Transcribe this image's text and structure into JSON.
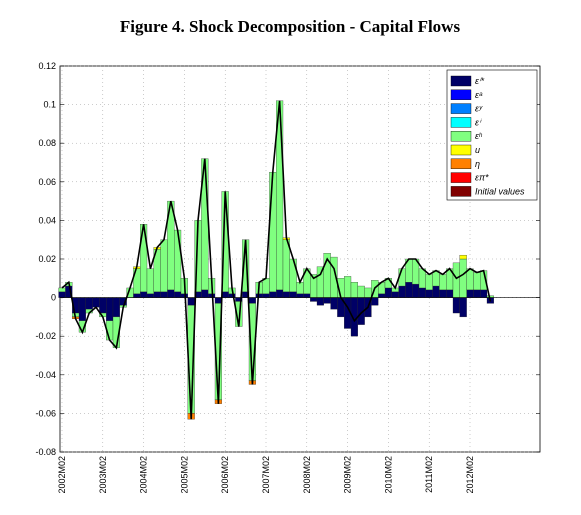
{
  "chart_data": {
    "type": "stacked-bar",
    "title": "Figure 4. Shock Decomposition - Capital Flows",
    "categories": [
      "2002M02",
      null,
      null,
      null,
      null,
      null,
      "2003M02",
      null,
      null,
      null,
      null,
      null,
      "2004M02",
      null,
      null,
      null,
      null,
      null,
      "2005M02",
      null,
      null,
      null,
      null,
      null,
      "2006M02",
      null,
      null,
      null,
      null,
      null,
      "2007M02",
      null,
      null,
      null,
      null,
      null,
      "2008M02",
      null,
      null,
      null,
      null,
      null,
      "2009M02",
      null,
      null,
      null,
      null,
      null,
      "2010M02",
      null,
      null,
      null,
      null,
      null,
      "2011M02",
      null,
      null,
      null,
      null,
      null,
      "2012M02",
      null,
      null,
      null
    ],
    "ylim": [
      -0.08,
      0.12
    ],
    "yticks": [
      -0.08,
      -0.06,
      -0.04,
      -0.02,
      0,
      0.02,
      0.04,
      0.06,
      0.08,
      0.1,
      0.12
    ],
    "grid": true,
    "series": [
      {
        "name": "εⁱ*",
        "color": "#000066",
        "values": [
          0.003,
          0.006,
          -0.008,
          -0.012,
          -0.006,
          -0.005,
          -0.008,
          -0.012,
          -0.01,
          -0.004,
          0,
          0.002,
          0.003,
          0.002,
          0.003,
          0.003,
          0.004,
          0.003,
          0.002,
          -0.004,
          0.003,
          0.004,
          0.002,
          -0.003,
          0.003,
          0.002,
          -0.002,
          0.003,
          -0.003,
          0.002,
          0.002,
          0.003,
          0.004,
          0.003,
          0.003,
          0.002,
          0.002,
          -0.002,
          -0.004,
          -0.003,
          -0.006,
          -0.01,
          -0.016,
          -0.02,
          -0.014,
          -0.01,
          -0.004,
          0.002,
          0.005,
          0.003,
          0.006,
          0.008,
          0.007,
          0.005,
          0.004,
          0.006,
          0.004,
          0.004,
          -0.008,
          -0.01,
          0.004,
          0.004,
          0.004,
          -0.003
        ]
      },
      {
        "name": "εᵃ",
        "color": "#0000ff",
        "values": [
          0,
          0,
          0,
          0,
          0,
          0,
          0,
          0,
          0,
          0,
          0,
          0,
          0,
          0,
          0,
          0,
          0,
          0,
          0,
          0,
          0,
          0,
          0,
          0,
          0,
          0,
          0,
          0,
          0,
          0,
          0,
          0,
          0,
          0,
          0,
          0,
          0,
          0,
          0,
          0,
          0,
          0,
          0,
          0,
          0,
          0,
          0,
          0,
          0,
          0,
          0,
          0,
          0,
          0,
          0,
          0,
          0,
          0,
          0,
          0,
          0,
          0,
          0,
          0
        ]
      },
      {
        "name": "εʸ",
        "color": "#0080ff",
        "values": [
          0,
          0,
          0,
          0,
          0,
          0,
          0,
          0,
          0,
          0,
          0,
          0,
          0,
          0,
          0,
          0,
          0,
          0,
          0,
          0,
          0,
          0,
          0,
          0,
          0,
          0,
          0,
          0,
          0,
          0,
          0,
          0,
          0,
          0,
          0,
          0,
          0,
          0,
          0,
          0,
          0,
          0,
          0,
          0,
          0,
          0,
          0,
          0,
          0,
          0,
          0,
          0,
          0,
          0,
          0,
          0,
          0,
          0,
          0,
          0,
          0,
          0,
          0,
          0
        ]
      },
      {
        "name": "εⁱ",
        "color": "#00ffff",
        "values": [
          0,
          0,
          0,
          0,
          0,
          0,
          0,
          0,
          0,
          0,
          0,
          0,
          0,
          0,
          0,
          0,
          0,
          0,
          0,
          0,
          0,
          0,
          0,
          0,
          0,
          0,
          0,
          0,
          0,
          0,
          0,
          0,
          0,
          0,
          0,
          0,
          0,
          0,
          0,
          0,
          0,
          0,
          0,
          0,
          0,
          0,
          0,
          0,
          0,
          0,
          0,
          0,
          0,
          0,
          0,
          0,
          0,
          0,
          0,
          0,
          0,
          0,
          0,
          0
        ]
      },
      {
        "name": "εʰ",
        "color": "#80ff80",
        "values": [
          0.002,
          0.002,
          -0.002,
          -0.006,
          -0.002,
          0,
          -0.002,
          -0.01,
          -0.016,
          -0.001,
          0.005,
          0.013,
          0.035,
          0.013,
          0.022,
          0.027,
          0.046,
          0.032,
          0.008,
          -0.056,
          0.037,
          0.068,
          0.008,
          -0.05,
          0.052,
          0.003,
          -0.013,
          0.027,
          -0.04,
          0.006,
          0.008,
          0.062,
          0.098,
          0.027,
          0.017,
          0.006,
          0.013,
          0.012,
          0.016,
          0.023,
          0.021,
          0.01,
          0.011,
          0.008,
          0.006,
          0.005,
          0.009,
          0.006,
          0.005,
          0.002,
          0.009,
          0.012,
          0.013,
          0.01,
          0.008,
          0.008,
          0.008,
          0.011,
          0.018,
          0.02,
          0.011,
          0.009,
          0.01,
          0.001
        ]
      },
      {
        "name": "u",
        "color": "#ffff00",
        "values": [
          0,
          0,
          0,
          0,
          0,
          0,
          0,
          0,
          0,
          0,
          0,
          0.001,
          0,
          0,
          0.001,
          0,
          0,
          0,
          0,
          0,
          0,
          0,
          0,
          0,
          0,
          0,
          0,
          0,
          0,
          0,
          0,
          0,
          0,
          0.001,
          0,
          0,
          0,
          0,
          0,
          0,
          0,
          0,
          0,
          0,
          0,
          0,
          0,
          0,
          0,
          0,
          0,
          0,
          0,
          0,
          0,
          0,
          0,
          0,
          0,
          0.002,
          0,
          0,
          0,
          0
        ]
      },
      {
        "name": "η",
        "color": "#ff8000",
        "values": [
          0,
          0,
          -0.001,
          0,
          0,
          0,
          0,
          0,
          0,
          0,
          0,
          0,
          0,
          0,
          0,
          0,
          0,
          0,
          0,
          -0.003,
          0,
          0,
          0,
          -0.002,
          0,
          0,
          0,
          0,
          -0.002,
          0,
          0,
          0,
          0,
          0,
          0,
          0,
          0,
          0,
          0,
          0,
          0,
          0,
          0,
          0,
          0,
          0,
          0,
          0,
          0,
          0,
          0,
          0,
          0,
          0,
          0,
          0,
          0,
          0,
          0,
          0,
          0,
          0,
          0,
          0
        ]
      },
      {
        "name": "επ*",
        "color": "#ff0000",
        "values": [
          0,
          0,
          0,
          0,
          0,
          0,
          0,
          0,
          0,
          0,
          0,
          0,
          0,
          0,
          0,
          0,
          0,
          0,
          0,
          0,
          0,
          0,
          0,
          0,
          0,
          0,
          0,
          0,
          0,
          0,
          0,
          0,
          0,
          0,
          0,
          0,
          0,
          0,
          0,
          0,
          0,
          0,
          0,
          0,
          0,
          0,
          0,
          0,
          0,
          0,
          0,
          0,
          0,
          0,
          0,
          0,
          0,
          0,
          0,
          0,
          0,
          0,
          0,
          0
        ]
      },
      {
        "name": "Initial values",
        "color": "#800000",
        "values": [
          0,
          0,
          0,
          0,
          0,
          0,
          0,
          0,
          0,
          0,
          0,
          0,
          0,
          0,
          0,
          0,
          0,
          0,
          0,
          0,
          0,
          0,
          0,
          0,
          0,
          0,
          0,
          0,
          0,
          0,
          0,
          0,
          0,
          0,
          0,
          0,
          0,
          0,
          0,
          0,
          0,
          0,
          0,
          0,
          0,
          0,
          0,
          0,
          0,
          0,
          0,
          0,
          0,
          0,
          0,
          0,
          0,
          0,
          0,
          0,
          0,
          0,
          0,
          0
        ]
      }
    ]
  }
}
